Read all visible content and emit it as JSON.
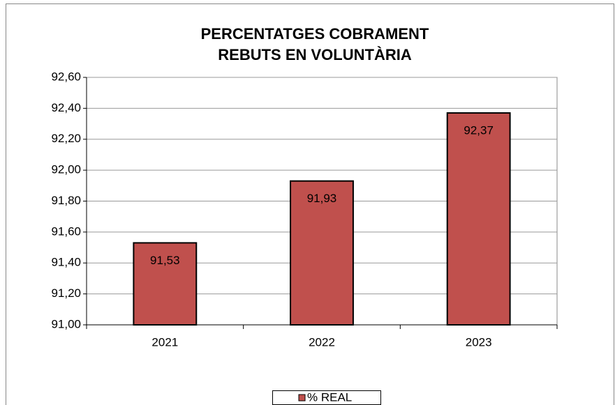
{
  "chart_data": {
    "type": "bar",
    "title": [
      "PERCENTATGES COBRAMENT",
      "REBUTS EN VOLUNTÀRIA"
    ],
    "categories": [
      "2021",
      "2022",
      "2023"
    ],
    "series": [
      {
        "name": "% REAL",
        "color": "#c0504d",
        "values": [
          91.53,
          91.93,
          92.37
        ],
        "value_labels": [
          "91,53",
          "91,93",
          "92,37"
        ]
      }
    ],
    "ylim": [
      91.0,
      92.6
    ],
    "yticks": [
      {
        "value": 91.0,
        "label": "91,00"
      },
      {
        "value": 91.2,
        "label": "91,20"
      },
      {
        "value": 91.4,
        "label": "91,40"
      },
      {
        "value": 91.6,
        "label": "91,60"
      },
      {
        "value": 91.8,
        "label": "91,80"
      },
      {
        "value": 92.0,
        "label": "92,00"
      },
      {
        "value": 92.2,
        "label": "92,20"
      },
      {
        "value": 92.4,
        "label": "92,40"
      },
      {
        "value": 92.6,
        "label": "92,60"
      }
    ],
    "grid": true,
    "legend": "bottom"
  }
}
